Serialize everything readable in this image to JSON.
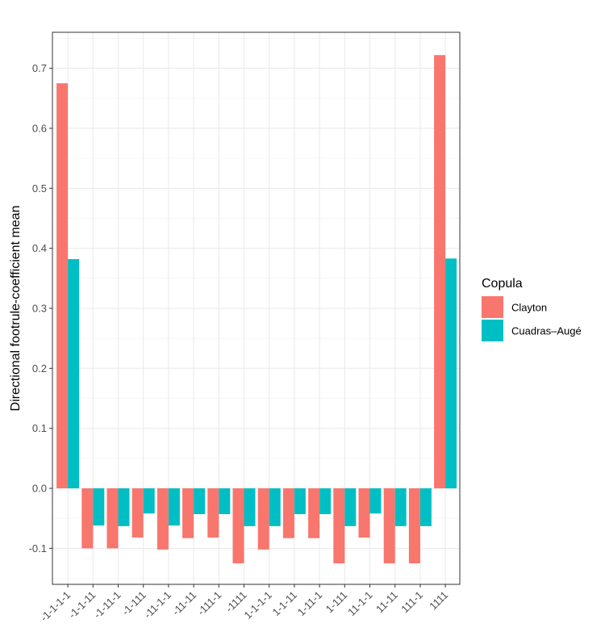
{
  "chart_data": {
    "type": "bar",
    "title": "",
    "xlabel": "",
    "ylabel": "Directional footrule-coefficient mean",
    "ylim": [
      -0.16,
      0.76
    ],
    "yticks": [
      -0.1,
      0.0,
      0.1,
      0.2,
      0.3,
      0.4,
      0.5,
      0.6,
      0.7
    ],
    "ytick_labels": [
      "-0.1",
      "0.0",
      "0.1",
      "0.2",
      "0.3",
      "0.4",
      "0.5",
      "0.6",
      "0.7"
    ],
    "grid": true,
    "categories": [
      "-1-1-1-1",
      "-1-1-11",
      "-1-11-1",
      "-1-111",
      "-11-1-1",
      "-11-11",
      "-111-1",
      "-1111",
      "1-1-1-1",
      "1-1-11",
      "1-11-1",
      "1-111",
      "11-1-1",
      "11-11",
      "111-1",
      "1111"
    ],
    "series": [
      {
        "name": "Clayton",
        "color": "#F8766D",
        "values": [
          0.675,
          -0.1,
          -0.1,
          -0.082,
          -0.102,
          -0.083,
          -0.082,
          -0.125,
          -0.102,
          -0.083,
          -0.083,
          -0.125,
          -0.082,
          -0.125,
          -0.125,
          0.722
        ]
      },
      {
        "name": "Cuadras–Augé",
        "color": "#00BFC4",
        "values": [
          0.382,
          -0.062,
          -0.063,
          -0.042,
          -0.062,
          -0.043,
          -0.043,
          -0.063,
          -0.063,
          -0.043,
          -0.043,
          -0.063,
          -0.042,
          -0.063,
          -0.063,
          0.383
        ]
      }
    ],
    "legend": {
      "title": "Copula",
      "position": "right"
    }
  }
}
